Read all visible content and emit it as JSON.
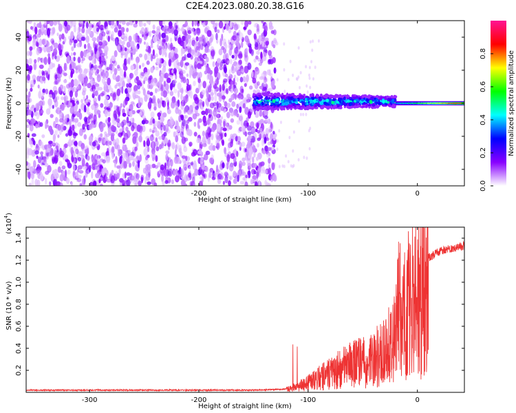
{
  "title": "C2E4.2023.080.20.38.G16",
  "chart_data": [
    {
      "type": "heatmap",
      "xlabel": "Height of straight line (km)",
      "ylabel": "Frequency (Hz)",
      "xlim": [
        -358,
        43
      ],
      "ylim": [
        -50,
        50
      ],
      "x_ticks": [
        -300,
        -200,
        -100,
        0
      ],
      "y_ticks": [
        -40,
        -20,
        0,
        20,
        40
      ],
      "colorbar": {
        "label": "Normalized spectral amplitude",
        "range": [
          0,
          1
        ],
        "ticks": [
          "0.0",
          "0.2",
          "0.4",
          "0.6",
          "0.8"
        ],
        "colors": [
          "#ffffff",
          "#8800ff",
          "#0000ff",
          "#00ffff",
          "#00ff00",
          "#ffff00",
          "#ff0000",
          "#ff1493"
        ]
      },
      "regions": [
        {
          "x_range": [
            -358,
            -130
          ],
          "frequency_range": [
            -50,
            50
          ],
          "amplitude": "0.0-0.2",
          "description": "noise"
        },
        {
          "x_range": [
            -150,
            -20
          ],
          "center_frequency": 1,
          "halfwidth_hz": [
            5,
            3
          ],
          "amplitude_max": 0.55
        },
        {
          "x_range": [
            -20,
            43
          ],
          "center_frequency": 0,
          "halfwidth_hz": 1,
          "amplitude_max": 0.9
        }
      ]
    },
    {
      "type": "line",
      "xlabel": "Height of straight line (km)",
      "ylabel": "SNR (10 * v/v)",
      "y_scale_label": "(x10",
      "y_scale_exp": "4",
      "y_scale_close": ")",
      "xlim": [
        -358,
        43
      ],
      "ylim": [
        0,
        1.5
      ],
      "x_ticks": [
        -300,
        -200,
        -100,
        0
      ],
      "y_ticks": [
        0.2,
        0.4,
        0.6,
        0.8,
        1.0,
        1.2,
        1.4
      ],
      "y_tick_labels": [
        "0.2",
        "0.4",
        "0.6",
        "0.8",
        "1.0",
        "1.2",
        "1.4"
      ],
      "color": "#ee3333",
      "series": [
        {
          "x": [
            -358,
            -300,
            -250,
            -200,
            -150,
            -120,
            -110,
            -100,
            -90,
            -80,
            -70,
            -60,
            -50,
            -40,
            -30,
            -25,
            -20,
            -18,
            -15,
            -12,
            -10,
            -5,
            0,
            10,
            20,
            30,
            43
          ],
          "y": [
            0.02,
            0.02,
            0.02,
            0.02,
            0.02,
            0.03,
            0.06,
            0.1,
            0.15,
            0.2,
            0.25,
            0.3,
            0.32,
            0.35,
            0.45,
            0.5,
            0.6,
            0.9,
            0.85,
            0.8,
            0.8,
            0.95,
            1.1,
            1.22,
            1.28,
            1.31,
            1.33
          ]
        }
      ]
    }
  ]
}
